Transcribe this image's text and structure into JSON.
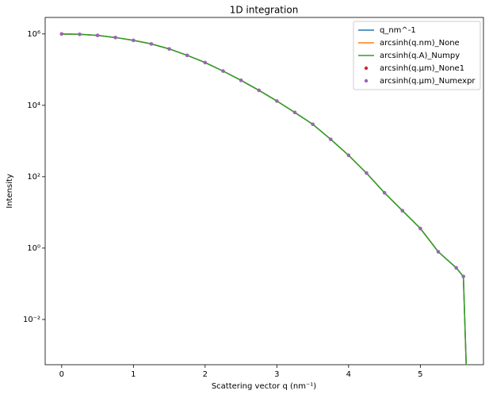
{
  "chart_data": {
    "type": "line",
    "title": "1D integration",
    "x_label": "Scattering vector q (nm⁻¹)",
    "y_label": "Intensity",
    "log_y": true,
    "x": [
      0,
      0.25,
      0.5,
      0.75,
      1,
      1.25,
      1.5,
      1.75,
      2,
      2.25,
      2.5,
      2.75,
      3,
      3.25,
      3.5,
      3.75,
      4,
      4.25,
      4.5,
      4.75,
      5,
      5.25,
      5.5,
      5.6,
      5.64
    ],
    "series": [
      {
        "name": "q_nm^-1",
        "color": "#1f77b4",
        "style": "line",
        "values": [
          1000000,
          977000,
          912000,
          794000,
          661000,
          525000,
          380000,
          251000,
          158000,
          91200,
          50100,
          26300,
          13200,
          6310,
          2950,
          1120,
          398,
          126,
          35.5,
          11.2,
          3.55,
          0.79,
          0.28,
          0.16,
          0.0005
        ]
      },
      {
        "name": "arcsinh(q.nm)_None",
        "color": "#ff7f0e",
        "style": "line",
        "values": [
          1000000,
          977000,
          912000,
          794000,
          661000,
          525000,
          380000,
          251000,
          158000,
          91200,
          50100,
          26300,
          13200,
          6310,
          2950,
          1120,
          398,
          126,
          35.5,
          11.2,
          3.55,
          0.79,
          0.28,
          0.16,
          0.0005
        ]
      },
      {
        "name": "arcsinh(q.A)_Numpy",
        "color": "#2ca02c",
        "style": "line",
        "values": [
          1000000,
          977000,
          912000,
          794000,
          661000,
          525000,
          380000,
          251000,
          158000,
          91200,
          50100,
          26300,
          13200,
          6310,
          2950,
          1120,
          398,
          126,
          35.5,
          11.2,
          3.55,
          0.79,
          0.28,
          0.16,
          0.0005
        ]
      },
      {
        "name": "arcsinh(q.µm)_None1",
        "color": "#d62728",
        "style": "dots",
        "values": [
          1000000,
          977000,
          912000,
          794000,
          661000,
          525000,
          380000,
          251000,
          158000,
          91200,
          50100,
          26300,
          13200,
          6310,
          2950,
          1120,
          398,
          126,
          35.5,
          11.2,
          3.55,
          0.79,
          0.28,
          0.16,
          null
        ]
      },
      {
        "name": "arcsinh(q.µm)_Numexpr",
        "color": "#9467bd",
        "style": "dots",
        "values": [
          1000000,
          977000,
          912000,
          794000,
          661000,
          525000,
          380000,
          251000,
          158000,
          91200,
          50100,
          26300,
          13200,
          6310,
          2950,
          1120,
          398,
          126,
          35.5,
          11.2,
          3.55,
          0.79,
          0.28,
          0.16,
          null
        ]
      }
    ],
    "xlim": [
      -0.23,
      5.88
    ],
    "xticks": [
      0,
      1,
      2,
      3,
      4,
      5
    ],
    "ylim": [
      0.00054,
      2900000
    ],
    "yticks": [
      {
        "value": 0.01,
        "label": "10⁻²"
      },
      {
        "value": 1,
        "label": "10⁰"
      },
      {
        "value": 100,
        "label": "10²"
      },
      {
        "value": 10000,
        "label": "10⁴"
      },
      {
        "value": 1000000,
        "label": "10⁶"
      }
    ],
    "legend": "upper right"
  }
}
